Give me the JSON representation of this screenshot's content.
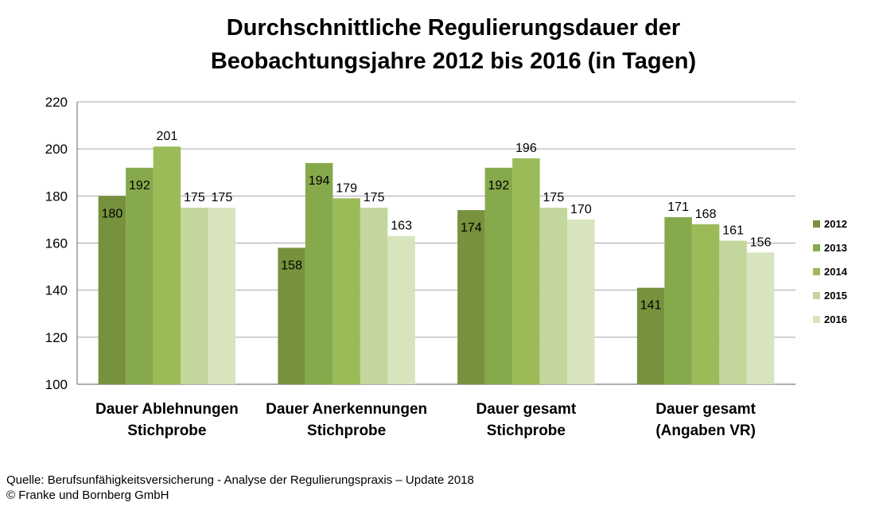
{
  "chart_data": {
    "type": "bar",
    "title_line1": "Durchschnittliche Regulierungsdauer der",
    "title_line2": "Beobachtungsjahre  2012 bis 2016 (in Tagen)",
    "xlabel": "",
    "ylabel": "",
    "ylim": [
      100,
      220
    ],
    "yticks": [
      100,
      120,
      140,
      160,
      180,
      200,
      220
    ],
    "grid": true,
    "legend_position": "right",
    "categories": [
      [
        "Dauer Ablehnungen",
        "Stichprobe"
      ],
      [
        "Dauer Anerkennungen",
        "Stichprobe"
      ],
      [
        "Dauer gesamt",
        "Stichprobe"
      ],
      [
        "Dauer gesamt",
        "(Angaben VR)"
      ]
    ],
    "series": [
      {
        "name": "2012",
        "color": "#76923c",
        "values": [
          180,
          158,
          174,
          141
        ]
      },
      {
        "name": "2013",
        "color": "#86a94c",
        "values": [
          192,
          194,
          192,
          171
        ]
      },
      {
        "name": "2014",
        "color": "#9bbb59",
        "values": [
          201,
          179,
          196,
          168
        ]
      },
      {
        "name": "2015",
        "color": "#c3d69b",
        "values": [
          175,
          175,
          175,
          161
        ]
      },
      {
        "name": "2016",
        "color": "#d7e4bd",
        "values": [
          175,
          163,
          170,
          156
        ]
      }
    ]
  },
  "footer": {
    "source": "Quelle: Berufsunfähigkeitsversicherung - Analyse der Regulierungspraxis – Update 2018",
    "copyright": "© Franke und Bornberg GmbH"
  }
}
